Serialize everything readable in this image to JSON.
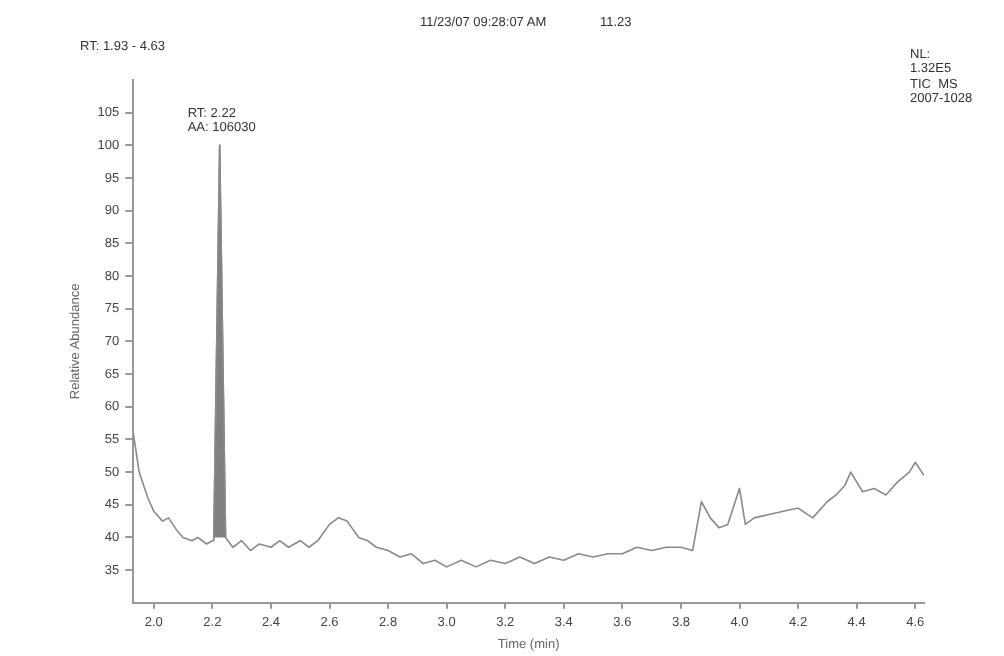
{
  "chart_data": {
    "type": "line",
    "xlabel": "Time (min)",
    "ylabel": "Relative Abundance",
    "annotations": [
      "11/23/07 09:28:07 AM",
      "11.23",
      "RT: 1.93 - 4.63",
      "NL:\n1.32E5\nTIC  MS\n2007-1028",
      {
        "text": "RT: 2.22\nAA: 106030",
        "x": 2.225,
        "y": 100
      }
    ],
    "xlim": [
      1.93,
      4.63
    ],
    "xticks": [
      {
        "value": 2,
        "label": "2.0"
      },
      2.2,
      2.4,
      2.6,
      2.8,
      {
        "value": 3,
        "label": "3.0"
      },
      3.2,
      3.4,
      3.6,
      3.8,
      {
        "value": 4,
        "label": "4.0"
      },
      4.2,
      4.4,
      4.6
    ],
    "ylim": [
      30,
      110
    ],
    "yticks": [
      35,
      40,
      45,
      50,
      55,
      60,
      65,
      70,
      75,
      80,
      85,
      90,
      95,
      100,
      105
    ],
    "grid": false,
    "legend": false,
    "marker": "none",
    "line_style": "solid",
    "series": [
      {
        "color": "#8a8a8a",
        "x": [
          1.93,
          1.95,
          1.98,
          2.0,
          2.03,
          2.05,
          2.08,
          2.1,
          2.13,
          2.15,
          2.18,
          2.2,
          2.205,
          2.225,
          2.245,
          2.27,
          2.3,
          2.33,
          2.36,
          2.4,
          2.43,
          2.46,
          2.5,
          2.53,
          2.56,
          2.6,
          2.63,
          2.66,
          2.7,
          2.73,
          2.76,
          2.8,
          2.84,
          2.88,
          2.92,
          2.96,
          3.0,
          3.05,
          3.1,
          3.15,
          3.2,
          3.25,
          3.3,
          3.35,
          3.4,
          3.45,
          3.5,
          3.55,
          3.6,
          3.65,
          3.7,
          3.75,
          3.8,
          3.84,
          3.87,
          3.9,
          3.93,
          3.96,
          4.0,
          4.02,
          4.05,
          4.1,
          4.15,
          4.2,
          4.25,
          4.3,
          4.33,
          4.36,
          4.38,
          4.42,
          4.46,
          4.5,
          4.54,
          4.58,
          4.6,
          4.63
        ],
        "values": [
          56,
          50,
          46,
          44,
          42.5,
          43,
          41,
          40,
          39.5,
          40,
          39,
          39.5,
          40,
          100,
          40,
          38.5,
          39.5,
          38,
          39,
          38.5,
          39.5,
          38.5,
          39.5,
          38.5,
          39.5,
          42,
          43,
          42.5,
          40,
          39.5,
          38.5,
          38,
          37,
          37.5,
          36,
          36.5,
          35.5,
          36.5,
          35.5,
          36.5,
          36,
          37,
          36,
          37,
          36.5,
          37.5,
          37,
          37.5,
          37.5,
          38.5,
          38,
          38.5,
          38.5,
          38,
          45.5,
          43,
          41.5,
          42,
          47.5,
          42,
          43,
          43.5,
          44,
          44.5,
          43,
          45.5,
          46.5,
          48,
          50,
          47,
          47.5,
          46.5,
          48.5,
          50,
          51.5,
          49.5
        ]
      },
      {
        "type": "area",
        "color": "#808080",
        "x": [
          2.205,
          2.225,
          2.245
        ],
        "values": [
          40,
          100,
          40
        ]
      }
    ]
  }
}
